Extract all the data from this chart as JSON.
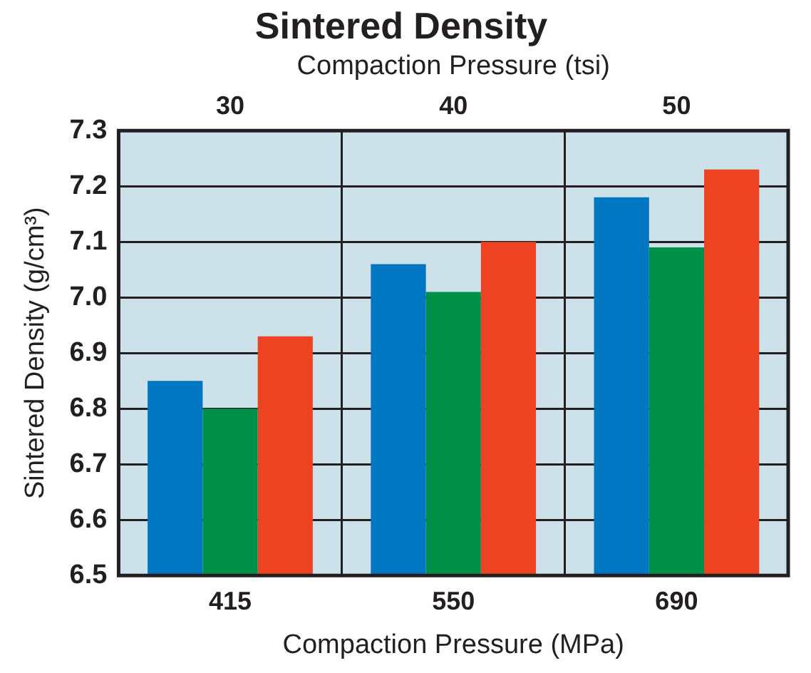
{
  "chart_data": {
    "type": "bar",
    "title": "Sintered Density",
    "x2label": "Compaction Pressure (tsi)",
    "x2lim": [
      25,
      55
    ],
    "x2ticks": [
      30,
      40,
      50
    ],
    "xlabel": "Compaction Pressure (MPa)",
    "ylabel": "Sintered Density (g/cm³)",
    "categories": [
      "415",
      "550",
      "690"
    ],
    "series": [
      {
        "color": "#0077c0",
        "values": [
          6.85,
          7.06,
          7.18
        ]
      },
      {
        "color": "#009049",
        "values": [
          6.8,
          7.01,
          7.09
        ]
      },
      {
        "color": "#ee4323",
        "values": [
          6.93,
          7.1,
          7.23
        ]
      }
    ],
    "ylim": [
      6.5,
      7.3
    ],
    "yticks": [
      6.5,
      6.6,
      6.7,
      6.8,
      6.9,
      {
        "value": 7,
        "label": "7.0"
      },
      7.1,
      7.2,
      7.3
    ],
    "grid": true,
    "legend": false
  }
}
